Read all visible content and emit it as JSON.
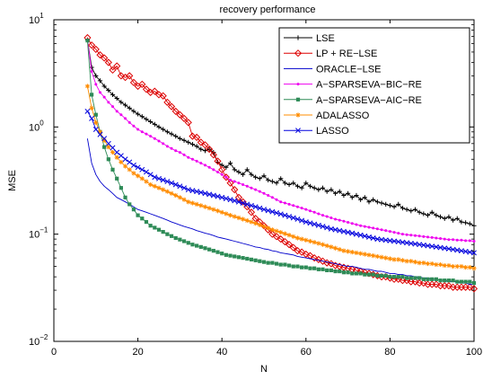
{
  "chart_data": {
    "type": "line",
    "title": "recovery performance",
    "xlabel": "N",
    "ylabel": "MSE",
    "xlim": [
      0,
      100
    ],
    "ylim": [
      0.01,
      10
    ],
    "yscale": "log",
    "xticks": [
      0,
      20,
      40,
      60,
      80,
      100
    ],
    "xtick_labels": [
      "0",
      "20",
      "40",
      "60",
      "80",
      "100"
    ],
    "yticks": [
      0.01,
      0.1,
      1,
      10
    ],
    "ytick_labels": [
      {
        "base": "10",
        "exp": "−2"
      },
      {
        "base": "10",
        "exp": "−1"
      },
      {
        "base": "10",
        "exp": "0"
      },
      {
        "base": "10",
        "exp": "1"
      }
    ],
    "grid": false,
    "legend_position": "top-right",
    "x": [
      8,
      9,
      10,
      11,
      12,
      13,
      14,
      15,
      16,
      17,
      18,
      19,
      20,
      21,
      22,
      23,
      24,
      25,
      26,
      27,
      28,
      29,
      30,
      31,
      32,
      33,
      34,
      35,
      36,
      37,
      38,
      39,
      40,
      41,
      42,
      43,
      44,
      45,
      46,
      47,
      48,
      49,
      50,
      51,
      52,
      53,
      54,
      55,
      56,
      57,
      58,
      59,
      60,
      61,
      62,
      63,
      64,
      65,
      66,
      67,
      68,
      69,
      70,
      71,
      72,
      73,
      74,
      75,
      76,
      77,
      78,
      79,
      80,
      81,
      82,
      83,
      84,
      85,
      86,
      87,
      88,
      89,
      90,
      91,
      92,
      93,
      94,
      95,
      96,
      97,
      98,
      99,
      100
    ],
    "series": [
      {
        "name": "LSE",
        "color": "#000000",
        "marker": "plus",
        "values": [
          6.5,
          3.6,
          3.0,
          2.7,
          2.4,
          2.2,
          2.0,
          1.85,
          1.7,
          1.6,
          1.5,
          1.4,
          1.32,
          1.25,
          1.18,
          1.12,
          1.06,
          1.0,
          0.95,
          0.9,
          0.86,
          0.82,
          0.78,
          0.75,
          0.72,
          0.69,
          0.66,
          0.62,
          0.6,
          0.62,
          0.58,
          0.47,
          0.44,
          0.42,
          0.46,
          0.4,
          0.38,
          0.36,
          0.4,
          0.36,
          0.34,
          0.33,
          0.35,
          0.32,
          0.31,
          0.3,
          0.33,
          0.3,
          0.29,
          0.3,
          0.28,
          0.27,
          0.3,
          0.28,
          0.27,
          0.26,
          0.27,
          0.25,
          0.26,
          0.24,
          0.25,
          0.23,
          0.24,
          0.22,
          0.23,
          0.21,
          0.22,
          0.2,
          0.21,
          0.2,
          0.195,
          0.19,
          0.185,
          0.18,
          0.19,
          0.175,
          0.17,
          0.165,
          0.17,
          0.16,
          0.155,
          0.15,
          0.16,
          0.15,
          0.145,
          0.14,
          0.145,
          0.135,
          0.14,
          0.13,
          0.128,
          0.125,
          0.12
        ]
      },
      {
        "name": "LP + RE−LSE",
        "color": "#dd0000",
        "marker": "diamond",
        "values": [
          6.8,
          5.8,
          5.3,
          4.7,
          4.4,
          4.0,
          3.4,
          3.7,
          3.0,
          2.9,
          3.0,
          2.6,
          2.4,
          2.5,
          2.25,
          2.1,
          2.15,
          2.0,
          1.95,
          1.7,
          1.55,
          1.4,
          1.3,
          1.2,
          1.1,
          0.82,
          0.8,
          0.72,
          0.68,
          0.62,
          0.55,
          0.48,
          0.4,
          0.34,
          0.3,
          0.26,
          0.22,
          0.2,
          0.18,
          0.16,
          0.14,
          0.13,
          0.12,
          0.11,
          0.1,
          0.095,
          0.09,
          0.085,
          0.08,
          0.075,
          0.07,
          0.068,
          0.065,
          0.063,
          0.06,
          0.058,
          0.056,
          0.054,
          0.053,
          0.051,
          0.05,
          0.049,
          0.048,
          0.047,
          0.046,
          0.045,
          0.044,
          0.043,
          0.042,
          0.041,
          0.04,
          0.04,
          0.039,
          0.038,
          0.038,
          0.037,
          0.037,
          0.036,
          0.036,
          0.035,
          0.035,
          0.034,
          0.034,
          0.034,
          0.033,
          0.033,
          0.033,
          0.032,
          0.032,
          0.032,
          0.032,
          0.032,
          0.031
        ]
      },
      {
        "name": "ORACLE−LSE",
        "color": "#0000cc",
        "marker": "none",
        "values": [
          0.78,
          0.46,
          0.36,
          0.31,
          0.28,
          0.26,
          0.24,
          0.22,
          0.21,
          0.2,
          0.19,
          0.18,
          0.17,
          0.165,
          0.16,
          0.155,
          0.15,
          0.145,
          0.14,
          0.135,
          0.13,
          0.126,
          0.122,
          0.118,
          0.115,
          0.112,
          0.108,
          0.105,
          0.102,
          0.1,
          0.097,
          0.094,
          0.092,
          0.09,
          0.088,
          0.086,
          0.084,
          0.082,
          0.08,
          0.078,
          0.076,
          0.075,
          0.073,
          0.072,
          0.07,
          0.069,
          0.067,
          0.066,
          0.065,
          0.064,
          0.062,
          0.061,
          0.06,
          0.059,
          0.058,
          0.057,
          0.056,
          0.055,
          0.054,
          0.053,
          0.052,
          0.051,
          0.05,
          0.05,
          0.049,
          0.048,
          0.047,
          0.047,
          0.046,
          0.045,
          0.045,
          0.044,
          0.043,
          0.043,
          0.042,
          0.042,
          0.041,
          0.041,
          0.04,
          0.04,
          0.039,
          0.039,
          0.038,
          0.038,
          0.037,
          0.037,
          0.036,
          0.036,
          0.036,
          0.035,
          0.035,
          0.034,
          0.034
        ]
      },
      {
        "name": "A−SPARSEVA−BIC−RE",
        "color": "#ee00ee",
        "marker": "dot",
        "values": [
          6.5,
          3.3,
          2.5,
          2.1,
          1.9,
          1.7,
          1.55,
          1.4,
          1.3,
          1.2,
          1.1,
          1.02,
          0.95,
          0.9,
          0.86,
          0.82,
          0.78,
          0.74,
          0.7,
          0.66,
          0.63,
          0.6,
          0.58,
          0.55,
          0.52,
          0.5,
          0.48,
          0.46,
          0.44,
          0.42,
          0.4,
          0.38,
          0.36,
          0.34,
          0.32,
          0.31,
          0.3,
          0.29,
          0.28,
          0.27,
          0.26,
          0.25,
          0.24,
          0.23,
          0.22,
          0.21,
          0.2,
          0.195,
          0.19,
          0.185,
          0.18,
          0.175,
          0.17,
          0.165,
          0.16,
          0.155,
          0.15,
          0.146,
          0.142,
          0.138,
          0.135,
          0.132,
          0.129,
          0.126,
          0.123,
          0.12,
          0.118,
          0.116,
          0.114,
          0.112,
          0.11,
          0.108,
          0.106,
          0.104,
          0.102,
          0.1,
          0.099,
          0.098,
          0.097,
          0.096,
          0.095,
          0.094,
          0.093,
          0.092,
          0.091,
          0.09,
          0.089,
          0.089,
          0.088,
          0.088,
          0.087,
          0.087,
          0.086
        ]
      },
      {
        "name": "A−SPARSEVA−AIC−RE",
        "color": "#2e8b57",
        "marker": "square",
        "values": [
          6.4,
          2.0,
          1.3,
          0.9,
          0.65,
          0.5,
          0.4,
          0.33,
          0.27,
          0.22,
          0.19,
          0.17,
          0.15,
          0.14,
          0.13,
          0.12,
          0.115,
          0.11,
          0.105,
          0.1,
          0.096,
          0.092,
          0.089,
          0.086,
          0.083,
          0.08,
          0.078,
          0.076,
          0.074,
          0.072,
          0.07,
          0.068,
          0.066,
          0.064,
          0.063,
          0.062,
          0.061,
          0.06,
          0.059,
          0.058,
          0.057,
          0.056,
          0.055,
          0.054,
          0.054,
          0.053,
          0.052,
          0.052,
          0.051,
          0.05,
          0.05,
          0.049,
          0.049,
          0.048,
          0.048,
          0.047,
          0.047,
          0.046,
          0.046,
          0.045,
          0.045,
          0.044,
          0.044,
          0.043,
          0.043,
          0.043,
          0.042,
          0.042,
          0.042,
          0.041,
          0.041,
          0.041,
          0.04,
          0.04,
          0.04,
          0.04,
          0.039,
          0.039,
          0.039,
          0.039,
          0.038,
          0.038,
          0.038,
          0.038,
          0.037,
          0.037,
          0.037,
          0.037,
          0.036,
          0.036,
          0.036,
          0.036,
          0.035
        ]
      },
      {
        "name": "ADALASSO",
        "color": "#ff8c00",
        "marker": "star",
        "values": [
          2.4,
          1.5,
          1.1,
          0.9,
          0.75,
          0.65,
          0.58,
          0.52,
          0.47,
          0.43,
          0.4,
          0.37,
          0.35,
          0.33,
          0.31,
          0.29,
          0.28,
          0.27,
          0.26,
          0.25,
          0.24,
          0.23,
          0.22,
          0.21,
          0.2,
          0.195,
          0.19,
          0.185,
          0.18,
          0.175,
          0.17,
          0.165,
          0.16,
          0.155,
          0.15,
          0.146,
          0.142,
          0.138,
          0.134,
          0.13,
          0.126,
          0.122,
          0.118,
          0.114,
          0.11,
          0.107,
          0.104,
          0.101,
          0.098,
          0.095,
          0.092,
          0.09,
          0.088,
          0.086,
          0.084,
          0.082,
          0.08,
          0.078,
          0.076,
          0.074,
          0.072,
          0.07,
          0.069,
          0.068,
          0.067,
          0.066,
          0.065,
          0.064,
          0.063,
          0.062,
          0.061,
          0.06,
          0.059,
          0.058,
          0.058,
          0.057,
          0.056,
          0.056,
          0.055,
          0.054,
          0.054,
          0.053,
          0.053,
          0.052,
          0.052,
          0.051,
          0.051,
          0.05,
          0.05,
          0.05,
          0.049,
          0.049,
          0.048
        ]
      },
      {
        "name": "LASSO",
        "color": "#0000dd",
        "marker": "x",
        "values": [
          1.4,
          1.2,
          0.95,
          0.85,
          0.78,
          0.7,
          0.64,
          0.58,
          0.54,
          0.5,
          0.47,
          0.44,
          0.42,
          0.4,
          0.38,
          0.36,
          0.34,
          0.33,
          0.32,
          0.31,
          0.3,
          0.29,
          0.28,
          0.27,
          0.26,
          0.255,
          0.25,
          0.245,
          0.24,
          0.235,
          0.23,
          0.225,
          0.22,
          0.215,
          0.21,
          0.205,
          0.2,
          0.195,
          0.19,
          0.185,
          0.18,
          0.175,
          0.17,
          0.166,
          0.162,
          0.158,
          0.154,
          0.15,
          0.146,
          0.142,
          0.138,
          0.134,
          0.13,
          0.127,
          0.124,
          0.121,
          0.118,
          0.115,
          0.112,
          0.11,
          0.108,
          0.106,
          0.104,
          0.102,
          0.1,
          0.098,
          0.096,
          0.094,
          0.092,
          0.09,
          0.089,
          0.088,
          0.087,
          0.086,
          0.085,
          0.084,
          0.083,
          0.082,
          0.081,
          0.08,
          0.079,
          0.078,
          0.077,
          0.076,
          0.075,
          0.074,
          0.073,
          0.072,
          0.071,
          0.07,
          0.069,
          0.068,
          0.067
        ]
      }
    ]
  }
}
